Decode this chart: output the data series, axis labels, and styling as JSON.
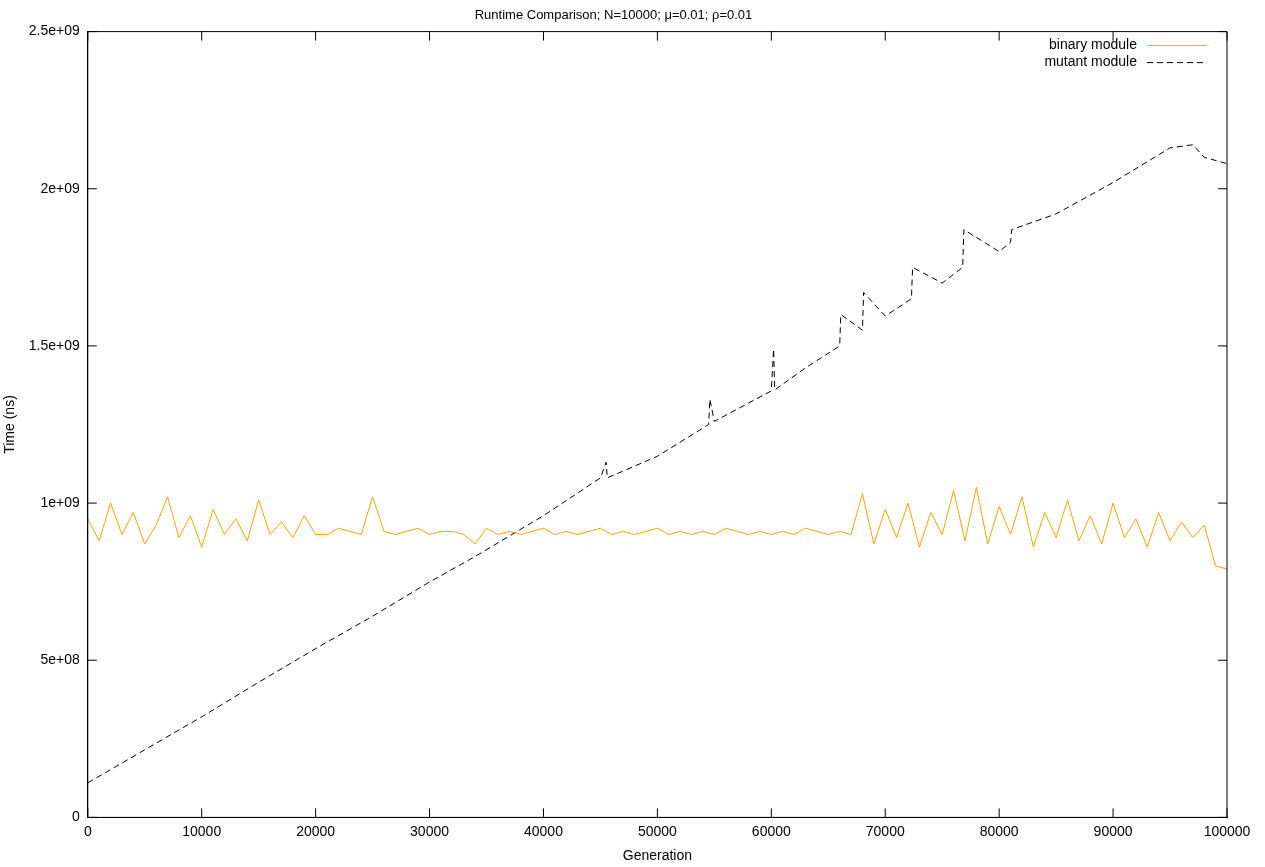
{
  "chart_data": {
    "type": "line",
    "title": "Runtime Comparison; N=10000; μ=0.01; ρ=0.01",
    "xlabel": "Generation",
    "ylabel": "Time (ns)",
    "x": [
      0,
      1000,
      2000,
      3000,
      4000,
      5000,
      6000,
      7000,
      8000,
      9000,
      10000,
      11000,
      12000,
      13000,
      14000,
      15000,
      16000,
      17000,
      18000,
      19000,
      20000,
      21000,
      22000,
      23000,
      24000,
      25000,
      26000,
      27000,
      28000,
      29000,
      30000,
      31000,
      32000,
      33000,
      34000,
      35000,
      36000,
      37000,
      38000,
      39000,
      40000,
      41000,
      42000,
      43000,
      44000,
      45000,
      46000,
      47000,
      48000,
      49000,
      50000,
      51000,
      52000,
      53000,
      54000,
      55000,
      56000,
      57000,
      58000,
      59000,
      60000,
      61000,
      62000,
      63000,
      64000,
      65000,
      66000,
      67000,
      68000,
      69000,
      70000,
      71000,
      72000,
      73000,
      74000,
      75000,
      76000,
      77000,
      78000,
      79000,
      80000,
      81000,
      82000,
      83000,
      84000,
      85000,
      86000,
      87000,
      88000,
      89000,
      90000,
      91000,
      92000,
      93000,
      94000,
      95000,
      96000,
      97000,
      98000,
      99000,
      100000
    ],
    "series": [
      {
        "name": "binary module",
        "color": "#ffa500",
        "line_style": "solid",
        "values": [
          950000000.0,
          880000000.0,
          1000000000.0,
          900000000.0,
          970000000.0,
          870000000.0,
          930000000.0,
          1020000000.0,
          890000000.0,
          960000000.0,
          860000000.0,
          980000000.0,
          900000000.0,
          950000000.0,
          880000000.0,
          1010000000.0,
          900000000.0,
          940000000.0,
          890000000.0,
          960000000.0,
          900000000.0,
          900000000.0,
          920000000.0,
          910000000.0,
          900000000.0,
          1020000000.0,
          910000000.0,
          900000000.0,
          910000000.0,
          920000000.0,
          900000000.0,
          910000000.0,
          910000000.0,
          900000000.0,
          870000000.0,
          920000000.0,
          900000000.0,
          910000000.0,
          900000000.0,
          910000000.0,
          920000000.0,
          900000000.0,
          910000000.0,
          900000000.0,
          910000000.0,
          920000000.0,
          900000000.0,
          910000000.0,
          900000000.0,
          910000000.0,
          920000000.0,
          900000000.0,
          910000000.0,
          900000000.0,
          910000000.0,
          900000000.0,
          920000000.0,
          910000000.0,
          900000000.0,
          910000000.0,
          900000000.0,
          910000000.0,
          900000000.0,
          920000000.0,
          910000000.0,
          900000000.0,
          910000000.0,
          900000000.0,
          1030000000.0,
          870000000.0,
          980000000.0,
          890000000.0,
          1000000000.0,
          860000000.0,
          970000000.0,
          900000000.0,
          1040000000.0,
          880000000.0,
          1050000000.0,
          870000000.0,
          990000000.0,
          900000000.0,
          1020000000.0,
          860000000.0,
          970000000.0,
          890000000.0,
          1010000000.0,
          880000000.0,
          960000000.0,
          870000000.0,
          1000000000.0,
          890000000.0,
          950000000.0,
          860000000.0,
          970000000.0,
          880000000.0,
          940000000.0,
          890000000.0,
          930000000.0,
          800000000.0,
          790000000.0
        ]
      },
      {
        "name": "mutant module",
        "color": "#000000",
        "line_style": "dashed",
        "x": [
          0,
          5000,
          10000,
          15000,
          20000,
          25000,
          30000,
          34000,
          37000,
          40000,
          45000,
          45500,
          45600,
          50000,
          54500,
          54600,
          55000,
          60000,
          60200,
          60300,
          63000,
          66000,
          66100,
          68000,
          68100,
          70000,
          72300,
          72400,
          75000,
          76800,
          76900,
          80000,
          81000,
          81100,
          85000,
          90000,
          95000,
          97000,
          98000,
          100000
        ],
        "values": [
          110000000.0,
          215000000.0,
          320000000.0,
          430000000.0,
          537000000.0,
          640000000.0,
          749000000.0,
          830000000.0,
          895000000.0,
          960000000.0,
          1080000000.0,
          1130000000.0,
          1080000000.0,
          1149000000.0,
          1250000000.0,
          1330000000.0,
          1260000000.0,
          1357000000.0,
          1490000000.0,
          1360000000.0,
          1430000000.0,
          1500000000.0,
          1600000000.0,
          1550000000.0,
          1670000000.0,
          1595000000.0,
          1650000000.0,
          1750000000.0,
          1700000000.0,
          1750000000.0,
          1870000000.0,
          1800000000.0,
          1830000000.0,
          1870000000.0,
          1920000000.0,
          2020000000.0,
          2130000000.0,
          2140000000.0,
          2100000000.0,
          2080000000.0
        ]
      }
    ],
    "xlim": [
      0,
      100000
    ],
    "xticks": [
      0,
      10000,
      20000,
      30000,
      40000,
      50000,
      60000,
      70000,
      80000,
      90000,
      100000
    ],
    "ylim": [
      0,
      2500000000
    ],
    "yticks": [
      0,
      {
        "value": 500000000,
        "label": "5e+08"
      },
      {
        "value": 1000000000,
        "label": "1e+09"
      },
      {
        "value": 1500000000,
        "label": "1.5e+09"
      },
      {
        "value": 2000000000,
        "label": "2e+09"
      },
      {
        "value": 2500000000,
        "label": "2.5e+09"
      }
    ],
    "legend": "top right",
    "grid": false,
    "marker": "none"
  }
}
